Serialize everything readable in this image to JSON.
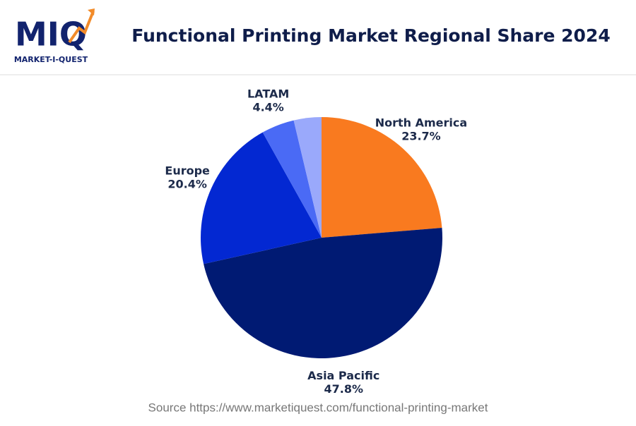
{
  "logo": {
    "text": "MIQ",
    "subtitle": "MARKET-I-QUEST"
  },
  "chart_data": {
    "type": "pie",
    "title": "Functional Printing Market Regional Share 2024",
    "categories": [
      "North America",
      "Asia Pacific",
      "Europe",
      "LATAM",
      null
    ],
    "values": [
      23.7,
      47.8,
      20.4,
      4.4,
      3.7
    ],
    "value_labels": [
      "23.7%",
      "47.8%",
      "20.4%",
      "4.4%",
      null
    ],
    "colors": [
      "#f97a1f",
      "#001a73",
      "#0328d2",
      "#4a6af5",
      "#9aa9fb"
    ]
  },
  "source": "Source https://www.marketiquest.com/functional-printing-market"
}
